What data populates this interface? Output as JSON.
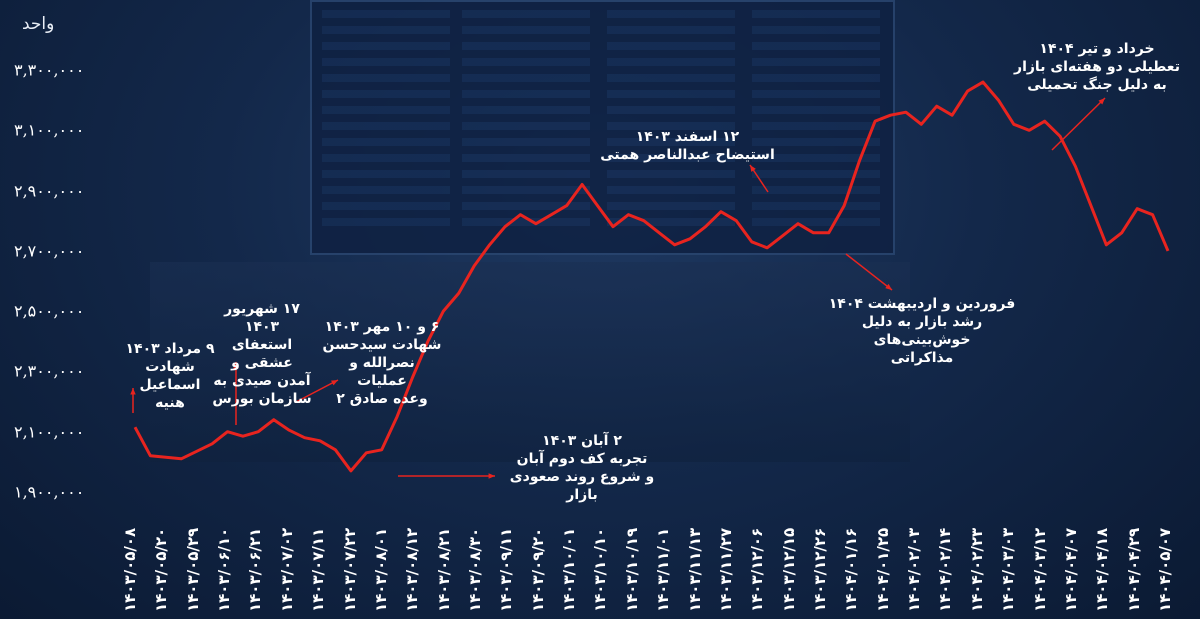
{
  "chart_data": {
    "type": "line",
    "ylabel": "واحد",
    "ylim": [
      1900000,
      3300000
    ],
    "y_ticks": [
      "۱,۹۰۰,۰۰۰",
      "۲,۱۰۰,۰۰۰",
      "۲,۳۰۰,۰۰۰",
      "۲,۵۰۰,۰۰۰",
      "۲,۷۰۰,۰۰۰",
      "۲,۹۰۰,۰۰۰",
      "۳,۱۰۰,۰۰۰",
      "۳,۳۰۰,۰۰۰"
    ],
    "x_ticks": [
      "۱۴۰۳/۰۵/۰۸",
      "۱۴۰۳/۰۵/۲۰",
      "۱۴۰۳/۰۵/۲۹",
      "۱۴۰۳/۰۶/۱۰",
      "۱۴۰۳/۰۶/۲۱",
      "۱۴۰۳/۰۷/۰۲",
      "۱۴۰۳/۰۷/۱۱",
      "۱۴۰۳/۰۷/۲۲",
      "۱۴۰۳/۰۸/۰۱",
      "۱۴۰۳/۰۸/۱۲",
      "۱۴۰۳/۰۸/۲۱",
      "۱۴۰۳/۰۸/۳۰",
      "۱۴۰۳/۰۹/۱۱",
      "۱۴۰۳/۰۹/۲۰",
      "۱۴۰۳/۱۰/۰۱",
      "۱۴۰۳/۱۰/۱۰",
      "۱۴۰۳/۱۰/۱۹",
      "۱۴۰۳/۱۱/۰۱",
      "۱۴۰۳/۱۱/۱۳",
      "۱۴۰۳/۱۱/۲۷",
      "۱۴۰۳/۱۲/۰۶",
      "۱۴۰۳/۱۲/۱۵",
      "۱۴۰۳/۱۲/۲۶",
      "۱۴۰۴/۰۱/۱۶",
      "۱۴۰۴/۰۱/۲۵",
      "۱۴۰۴/۰۲/۰۳",
      "۱۴۰۴/۰۲/۱۴",
      "۱۴۰۴/۰۲/۲۳",
      "۱۴۰۴/۰۳/۰۳",
      "۱۴۰۴/۰۳/۱۲",
      "۱۴۰۴/۰۴/۰۷",
      "۱۴۰۴/۰۴/۱۸",
      "۱۴۰۴/۰۴/۲۹",
      "۱۴۰۴/۰۵/۰۷"
    ],
    "series": [
      {
        "values": [
          2115000,
          2020000,
          2015000,
          2010000,
          2035000,
          2060000,
          2100000,
          2085000,
          2100000,
          2140000,
          2105000,
          2080000,
          2070000,
          2040000,
          1970000,
          2030000,
          2040000,
          2150000,
          2280000,
          2400000,
          2500000,
          2560000,
          2650000,
          2720000,
          2780000,
          2820000,
          2790000,
          2820000,
          2850000,
          2920000,
          2850000,
          2780000,
          2820000,
          2800000,
          2760000,
          2720000,
          2740000,
          2780000,
          2830000,
          2800000,
          2730000,
          2710000,
          2750000,
          2790000,
          2760000,
          2760000,
          2850000,
          3000000,
          3130000,
          3150000,
          3160000,
          3120000,
          3180000,
          3150000,
          3230000,
          3260000,
          3200000,
          3120000,
          3100000,
          3130000,
          3080000,
          2980000,
          2850000,
          2720000,
          2760000,
          2840000,
          2820000,
          2700000
        ]
      }
    ],
    "color": "#e8241f",
    "grid": false,
    "annotations": [
      {
        "lines": [
          "۹ مرداد ۱۴۰۳",
          "شهادت",
          "اسماعیل هنیه"
        ]
      },
      {
        "lines": [
          "۱۷ شهریور ۱۴۰۳",
          "استعفای عشقی و",
          "آمدن صیدی به",
          "سازمان بورس"
        ]
      },
      {
        "lines": [
          "۶ و ۱۰ مهر ۱۴۰۳",
          "شهادت سیدحسن",
          "نصرالله و عملیات",
          "وعده صادق ۲"
        ]
      },
      {
        "lines": [
          "۲ آبان ۱۴۰۳",
          "تجربه کف دوم آبان",
          "و شروع روند صعودی بازار"
        ]
      },
      {
        "lines": [
          "۱۲ اسفند ۱۴۰۳",
          "استیضاح عبدالناصر همتی"
        ]
      },
      {
        "lines": [
          "فروردین و اردیبهشت ۱۴۰۴",
          "رشد بازار به دلیل خوش‌بینی‌های",
          "مذاکراتی"
        ]
      },
      {
        "lines": [
          "خرداد و تیر ۱۴۰۴",
          "تعطیلی دو هفته‌ای بازار",
          "به دلیل جنگ تحمیلی"
        ]
      }
    ]
  }
}
